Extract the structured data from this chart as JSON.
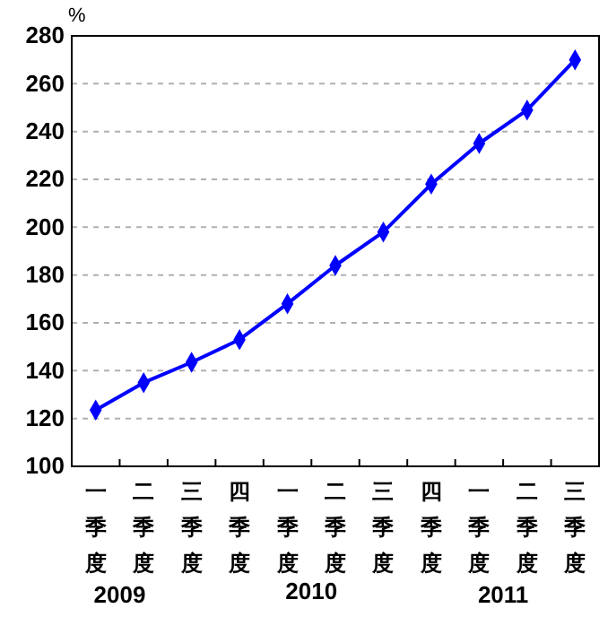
{
  "chart_data": {
    "type": "line",
    "ylabel": "%",
    "categories": [
      "一季度",
      "二季度",
      "三季度",
      "四季度",
      "一季度",
      "二季度",
      "三季度",
      "四季度",
      "一季度",
      "二季度",
      "三季度"
    ],
    "series": [
      {
        "color": "#0000ff",
        "values": [
          123.5,
          135,
          143.5,
          153,
          168,
          184,
          198,
          218,
          235,
          249,
          270
        ]
      }
    ],
    "ylim": [
      100,
      280
    ],
    "yticks": [
      100,
      120,
      140,
      160,
      180,
      200,
      220,
      240,
      260,
      280
    ],
    "grid": "y",
    "marker": "diamond",
    "line_style": "solid",
    "annotations": [
      "2009",
      "2010",
      "2011"
    ]
  }
}
